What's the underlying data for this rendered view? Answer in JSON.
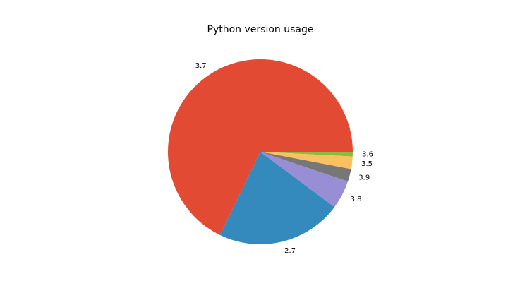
{
  "chart_data": {
    "type": "pie",
    "title": "Python version usage",
    "labels": [
      "3.6",
      "3.5",
      "3.9",
      "3.8",
      "2.7",
      "3.7"
    ],
    "values": [
      0.8,
      2.2,
      2.2,
      5.0,
      22.0,
      67.8
    ],
    "colors": [
      "#8eba42",
      "#fbc15e",
      "#777777",
      "#988ed5",
      "#348abd",
      "#e24a33"
    ],
    "start_angle_deg": 0,
    "direction": "clockwise",
    "legend": "none"
  }
}
